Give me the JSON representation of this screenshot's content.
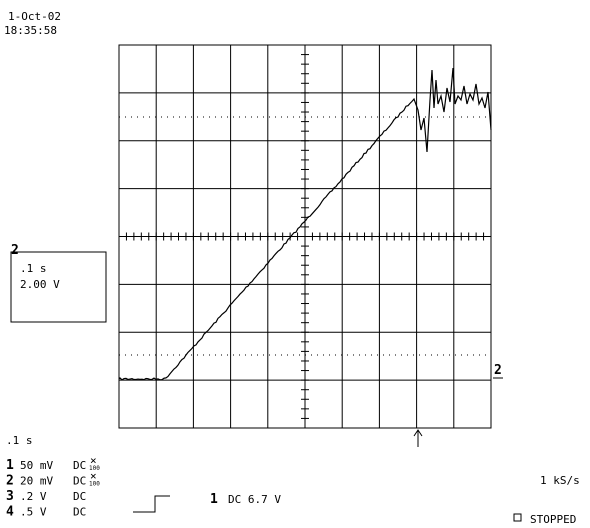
{
  "header": {
    "date": "1-Oct-02",
    "time": "18:35:58"
  },
  "cursor_box": {
    "channel": "2",
    "timebase": ".1 s",
    "volts": "2.00 V"
  },
  "timebase": ".1  s",
  "channels": [
    {
      "number": "1",
      "scale": "50 mV",
      "coupling": "DC",
      "probe_top": "×",
      "probe_bottom": "100"
    },
    {
      "number": "2",
      "scale": "20 mV",
      "coupling": "DC",
      "probe_top": "×",
      "probe_bottom": "100"
    },
    {
      "number": "3",
      "scale": ".2  V",
      "coupling": "DC"
    },
    {
      "number": "4",
      "scale": ".5  V",
      "coupling": "DC"
    }
  ],
  "trigger": {
    "source": "1",
    "setting": "DC 6.7 V"
  },
  "sample_rate": "1 kS/s",
  "status": "STOPPED",
  "ground_marker": "2"
}
